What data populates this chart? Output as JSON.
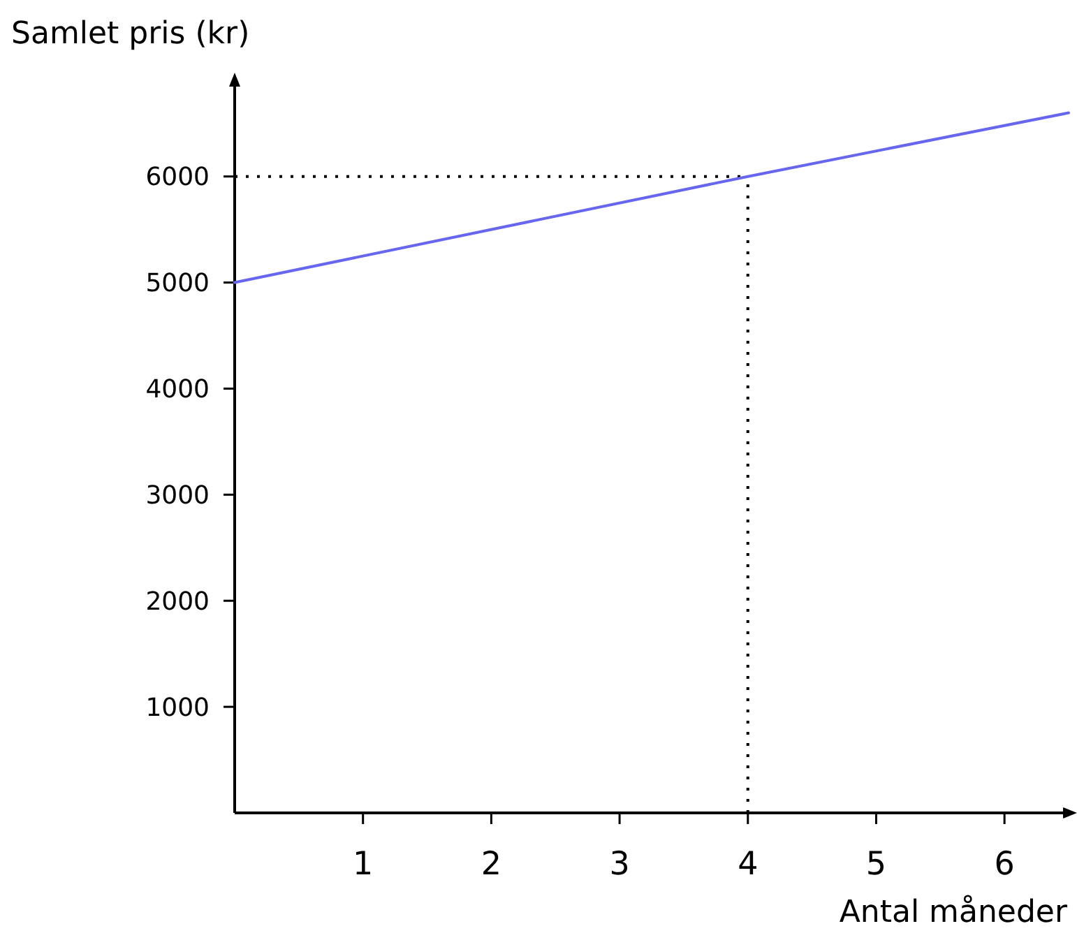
{
  "chart_data": {
    "type": "line",
    "xlabel": "Antal måneder",
    "ylabel": "Samlet pris (kr)",
    "x": [
      0,
      4,
      6.5
    ],
    "series": [
      {
        "color": "#6666ee",
        "values": [
          5000,
          6000,
          6600
        ]
      }
    ],
    "xlim": [
      0,
      6.5
    ],
    "ylim": [
      0,
      6900
    ],
    "xticks": [
      1,
      2,
      3,
      4,
      5,
      6
    ],
    "yticks": [
      1000,
      2000,
      3000,
      4000,
      5000,
      6000
    ],
    "ref_lines": [
      {
        "axis": "y",
        "value": 6000,
        "line_style": "dotted",
        "color": "#000000"
      },
      {
        "axis": "x",
        "value": 4,
        "line_style": "dotted",
        "color": "#000000"
      }
    ],
    "grid": false,
    "marker": "none",
    "line_style": "solid"
  }
}
